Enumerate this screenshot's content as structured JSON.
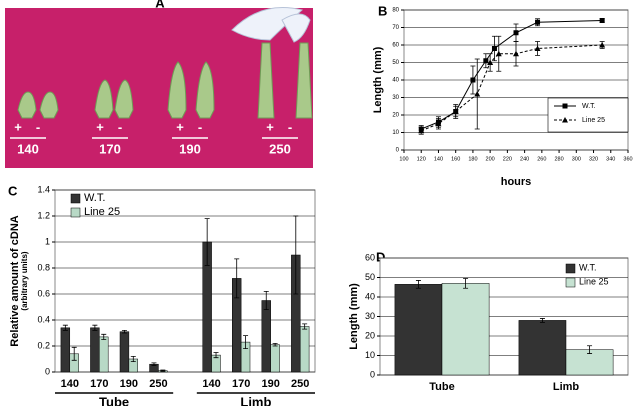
{
  "photo": {
    "panel_label": "A",
    "pairs": [
      {
        "plus": "+",
        "minus": "-",
        "label": "140"
      },
      {
        "plus": "+",
        "minus": "-",
        "label": "170"
      },
      {
        "plus": "+",
        "minus": "-",
        "label": "190"
      },
      {
        "plus": "+",
        "minus": "-",
        "label": "250"
      }
    ]
  },
  "chart_data": [
    {
      "type": "line",
      "panel_label": "B",
      "xlabel": "hours",
      "ylabel": "Length (mm)",
      "xlim": [
        100,
        360
      ],
      "xticks": [
        100,
        120,
        140,
        160,
        180,
        200,
        220,
        240,
        260,
        280,
        300,
        320,
        340,
        360
      ],
      "ylim": [
        0,
        80
      ],
      "yticks": [
        0,
        10,
        20,
        30,
        40,
        50,
        60,
        70,
        80
      ],
      "grid": true,
      "legend": "lower right",
      "series": [
        {
          "name": "W.T.",
          "color": "#000000",
          "marker": "square",
          "linestyle": "solid",
          "x": [
            120,
            140,
            160,
            180,
            195,
            205,
            230,
            255,
            330
          ],
          "values": [
            12,
            16,
            22,
            40,
            51,
            58,
            67,
            73,
            74
          ],
          "errors": [
            2,
            3,
            3,
            8,
            4,
            7,
            5,
            2,
            1
          ]
        },
        {
          "name": "Line 25",
          "color": "#000000",
          "marker": "triangle",
          "linestyle": "dashed",
          "x": [
            120,
            140,
            160,
            185,
            200,
            210,
            230,
            255,
            330
          ],
          "values": [
            11,
            15,
            22,
            32,
            50,
            55,
            55,
            58,
            60
          ],
          "errors": [
            2,
            3,
            4,
            20,
            5,
            10,
            7,
            4,
            2
          ]
        }
      ]
    },
    {
      "type": "bar",
      "panel_label": "C",
      "ylabel": "Relative amount of cDNA",
      "ylabel_sub": "(arbitrary units)",
      "categories": [
        "140",
        "170",
        "190",
        "250",
        "140",
        "170",
        "190",
        "250"
      ],
      "groups": [
        "Tube",
        "Limb"
      ],
      "ylim": [
        0,
        1.4
      ],
      "yticks": [
        0,
        0.2,
        0.4,
        0.6,
        0.8,
        1,
        1.2,
        1.4
      ],
      "grid": true,
      "legend": "upper left",
      "series": [
        {
          "name": "W.T.",
          "color": "#333333",
          "values": [
            0.34,
            0.34,
            0.31,
            0.06,
            1.0,
            0.72,
            0.55,
            0.9
          ],
          "errors": [
            0.02,
            0.02,
            0.01,
            0.01,
            0.18,
            0.15,
            0.07,
            0.3
          ]
        },
        {
          "name": "Line 25",
          "color": "#b8d9c6",
          "values": [
            0.14,
            0.27,
            0.1,
            0.01,
            0.13,
            0.23,
            0.21,
            0.35
          ],
          "errors": [
            0.05,
            0.02,
            0.02,
            0.005,
            0.02,
            0.05,
            0.01,
            0.02
          ]
        }
      ]
    },
    {
      "type": "bar",
      "panel_label": "D",
      "ylabel": "Length (mm)",
      "categories": [
        "Tube",
        "Limb"
      ],
      "ylim": [
        0,
        60
      ],
      "yticks": [
        0,
        10,
        20,
        30,
        40,
        50,
        60
      ],
      "grid": true,
      "legend": "upper right",
      "series": [
        {
          "name": "W.T.",
          "color": "#333333",
          "values": [
            46.5,
            28
          ],
          "errors": [
            2,
            1
          ]
        },
        {
          "name": "Line 25",
          "color": "#c6e2d2",
          "values": [
            47,
            13
          ],
          "errors": [
            2.5,
            2
          ]
        }
      ]
    }
  ]
}
